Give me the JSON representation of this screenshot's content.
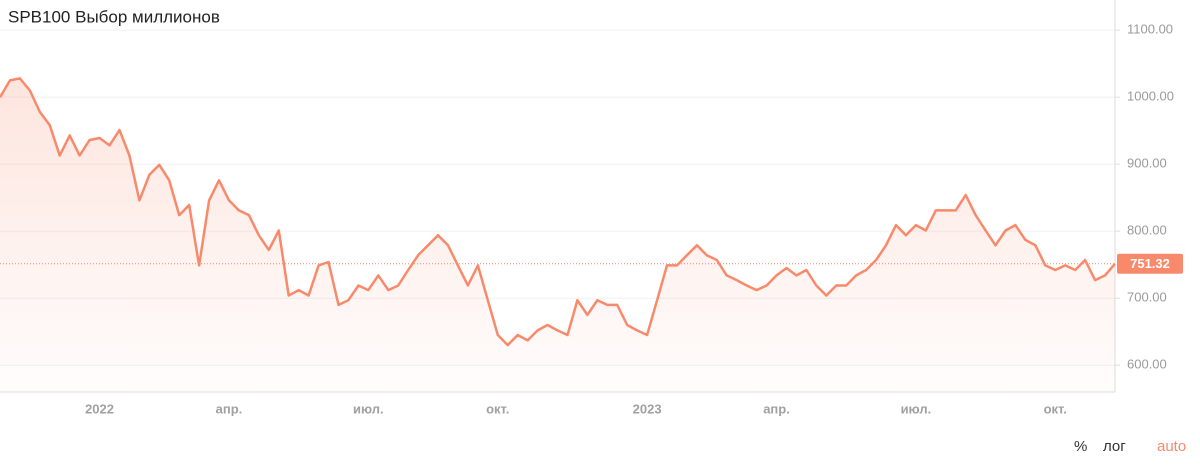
{
  "chart_data": {
    "type": "line",
    "title": "SPB100 Выбор миллионов",
    "categories": [
      null,
      null,
      null,
      null,
      null,
      null,
      null,
      null,
      null,
      null,
      "2022",
      null,
      null,
      null,
      null,
      null,
      null,
      null,
      null,
      null,
      null,
      null,
      null,
      "апр.",
      null,
      null,
      null,
      null,
      null,
      null,
      null,
      null,
      null,
      null,
      null,
      null,
      null,
      "июл.",
      null,
      null,
      null,
      null,
      null,
      null,
      null,
      null,
      null,
      null,
      null,
      null,
      "окт.",
      null,
      null,
      null,
      null,
      null,
      null,
      null,
      null,
      null,
      null,
      null,
      null,
      null,
      null,
      "2023",
      null,
      null,
      null,
      null,
      null,
      null,
      null,
      null,
      null,
      null,
      null,
      null,
      "апр.",
      null,
      null,
      null,
      null,
      null,
      null,
      null,
      null,
      null,
      null,
      null,
      null,
      null,
      "июл.",
      null,
      null,
      null,
      null,
      null,
      null,
      null,
      null,
      null,
      null,
      null,
      null,
      null,
      "окт.",
      null,
      null,
      null,
      null,
      null,
      null
    ],
    "values": [
      1000,
      1025,
      1028,
      1010,
      978,
      958,
      913,
      943,
      913,
      936,
      939,
      928,
      951,
      913,
      846,
      884,
      899,
      876,
      824,
      839,
      749,
      846,
      876,
      846,
      831,
      824,
      794,
      772,
      801,
      704,
      712,
      704,
      749,
      754,
      690,
      697,
      719,
      712,
      734,
      712,
      719,
      742,
      764,
      779,
      794,
      779,
      749,
      719,
      749,
      697,
      645,
      630,
      645,
      637,
      652,
      660,
      652,
      645,
      697,
      675,
      697,
      690,
      690,
      660,
      652,
      645,
      697,
      749,
      749,
      764,
      779,
      764,
      757,
      734,
      727,
      719,
      712,
      719,
      734,
      745,
      734,
      742,
      719,
      704,
      719,
      719,
      734,
      742,
      757,
      779,
      809,
      794,
      809,
      801,
      831,
      831,
      831,
      854,
      824,
      801,
      779,
      801,
      809,
      787,
      779,
      749,
      742,
      749,
      742,
      757,
      727,
      734,
      751.32
    ],
    "color": "#f9896b",
    "ylim": [
      560,
      1145
    ],
    "yticks": [
      {
        "value": 600,
        "label": "600.00"
      },
      {
        "value": 700,
        "label": "700.00"
      },
      {
        "value": 800,
        "label": "800.00"
      },
      {
        "value": 900,
        "label": "900.00"
      },
      {
        "value": 1000,
        "label": "1000.00"
      },
      {
        "value": 1100,
        "label": "1100.00"
      }
    ],
    "grid": true
  },
  "controls": [
    "%",
    "лог",
    "auto"
  ]
}
